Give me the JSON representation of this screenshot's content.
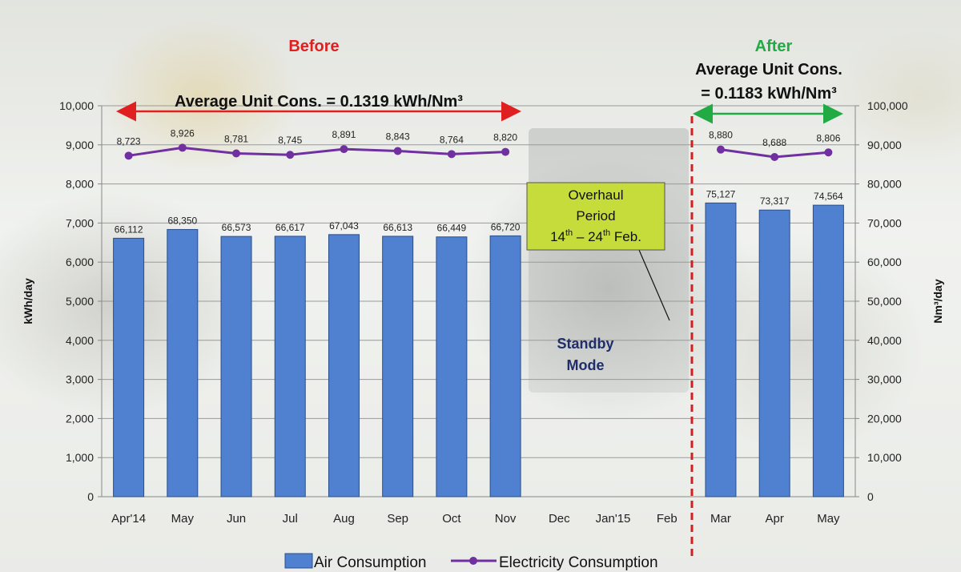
{
  "chart_data": {
    "type": "bar",
    "categories": [
      "Apr'14",
      "May",
      "Jun",
      "Jul",
      "Aug",
      "Sep",
      "Oct",
      "Nov",
      "Dec",
      "Jan'15",
      "Feb",
      "Mar",
      "Apr",
      "May"
    ],
    "series": [
      {
        "name": "Air Consumption",
        "type": "bar",
        "axis": "right",
        "color": "#4f81d0",
        "values": [
          66112,
          68350,
          66573,
          66617,
          67043,
          66613,
          66449,
          66720,
          null,
          null,
          null,
          75127,
          73317,
          74564
        ],
        "labels": [
          "66,112",
          "68,350",
          "66,573",
          "66,617",
          "67,043",
          "66,613",
          "66,449",
          "66,720",
          "",
          "",
          "",
          "75,127",
          "73,317",
          "74,564"
        ]
      },
      {
        "name": "Electricity Consumption",
        "type": "line",
        "axis": "left",
        "color": "#7030a0",
        "values": [
          8723,
          8926,
          8781,
          8745,
          8891,
          8843,
          8764,
          8820,
          null,
          null,
          null,
          8880,
          8688,
          8806
        ],
        "labels": [
          "8,723",
          "8,926",
          "8,781",
          "8,745",
          "8,891",
          "8,843",
          "8,764",
          "8,820",
          "",
          "",
          "",
          "8,880",
          "8,688",
          "8,806"
        ]
      }
    ],
    "ylabel": "kWh/day",
    "ylabel_right": "Nm³/day",
    "ylim": [
      0,
      10000
    ],
    "ylim_right": [
      0,
      100000
    ],
    "yticks": [
      "0",
      "1,000",
      "2,000",
      "3,000",
      "4,000",
      "5,000",
      "6,000",
      "7,000",
      "8,000",
      "9,000",
      "10,000"
    ],
    "yticks_right": [
      "0",
      "10,000",
      "20,000",
      "30,000",
      "40,000",
      "50,000",
      "60,000",
      "70,000",
      "80,000",
      "90,000",
      "100,000"
    ],
    "grid": true,
    "legend": "bottom",
    "annotations": {
      "before_label": "Before",
      "before_color": "#e02020",
      "before_avg_text": "Average Unit Cons. = 0.1319 kWh/Nm³",
      "after_label": "After",
      "after_color": "#22aa44",
      "after_avg_line1": "Average Unit Cons.",
      "after_avg_line2": "= 0.1183 kWh/Nm³",
      "overhaul_line1": "Overhaul",
      "overhaul_line2": "Period",
      "overhaul_line3_a": "14",
      "overhaul_line3_sup1": "th",
      "overhaul_line3_b": " – 24",
      "overhaul_line3_sup2": "th",
      "overhaul_line3_c": " Feb.",
      "overhaul_box_color": "#c6dc3a",
      "standby_line1": "Standby",
      "standby_line2": "Mode",
      "standby_color": "#1f2d6b",
      "divider_color": "#d02020"
    }
  }
}
